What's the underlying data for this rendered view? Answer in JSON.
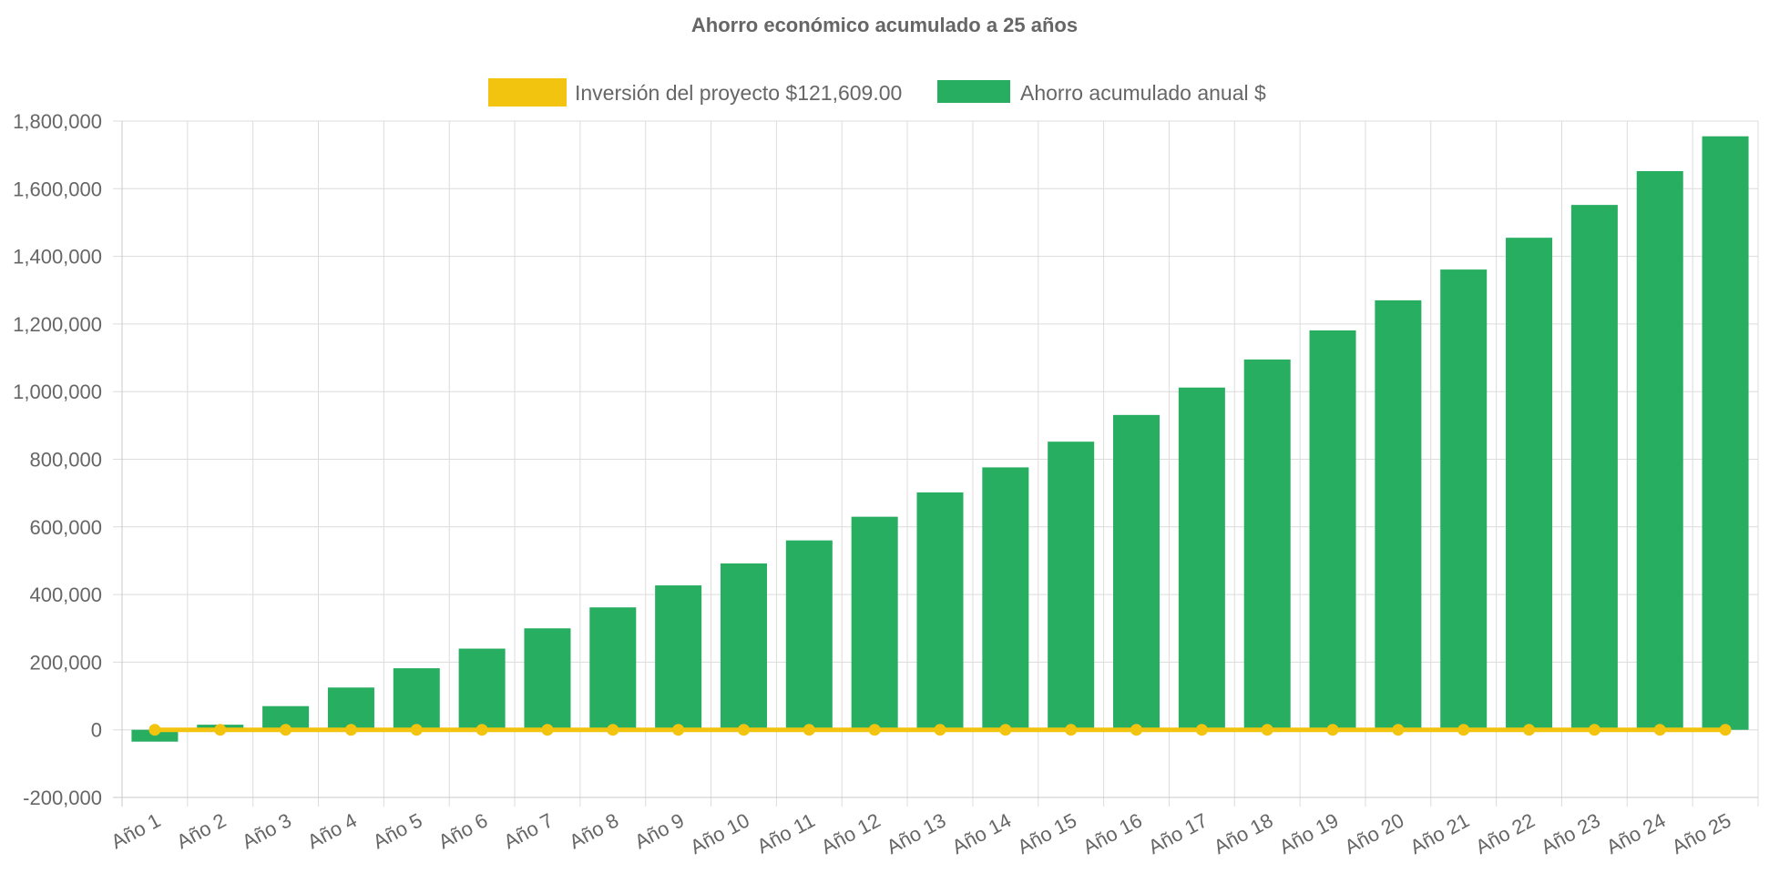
{
  "chart_data": {
    "type": "bar",
    "title": "Ahorro económico acumulado a 25 años",
    "xlabel": "",
    "ylabel": "",
    "ylim": [
      -200000,
      1800000
    ],
    "y_ticks": [
      "1,800,000",
      "1,600,000",
      "1,400,000",
      "1,200,000",
      "1,000,000",
      "800,000",
      "600,000",
      "400,000",
      "200,000",
      "0",
      "-200,000"
    ],
    "y_tick_values": [
      1800000,
      1600000,
      1400000,
      1200000,
      1000000,
      800000,
      600000,
      400000,
      200000,
      0,
      -200000
    ],
    "grid": true,
    "legend_position": "top",
    "categories": [
      "Año 1",
      "Año 2",
      "Año 3",
      "Año 4",
      "Año 5",
      "Año 6",
      "Año 7",
      "Año 8",
      "Año 9",
      "Año 10",
      "Año 11",
      "Año 12",
      "Año 13",
      "Año 14",
      "Año 15",
      "Año 16",
      "Año 17",
      "Año 18",
      "Año 19",
      "Año 20",
      "Año 21",
      "Año 22",
      "Año 23",
      "Año 24",
      "Año 25"
    ],
    "series": [
      {
        "name": "Inversión del proyecto $121,609.00",
        "type": "line",
        "color": "#f2c40f",
        "values": [
          0,
          0,
          0,
          0,
          0,
          0,
          0,
          0,
          0,
          0,
          0,
          0,
          0,
          0,
          0,
          0,
          0,
          0,
          0,
          0,
          0,
          0,
          0,
          0,
          0
        ]
      },
      {
        "name": "Ahorro acumulado anual $",
        "type": "bar",
        "color": "#27ae60",
        "values": [
          -35000,
          15000,
          70000,
          125000,
          182000,
          240000,
          300000,
          362000,
          427000,
          492000,
          560000,
          630000,
          702000,
          776000,
          852000,
          931000,
          1012000,
          1095000,
          1181000,
          1270000,
          1361000,
          1455000,
          1552000,
          1652000,
          1755000
        ]
      }
    ]
  }
}
